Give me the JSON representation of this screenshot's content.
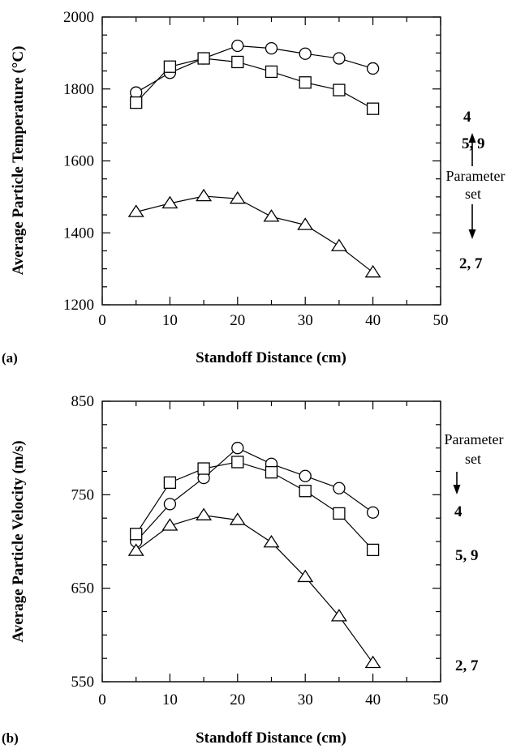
{
  "chart_data": [
    {
      "type": "line",
      "panel": "(a)",
      "xlabel": "Standoff Distance (cm)",
      "ylabel": "Average Particle Temperature (°C)",
      "xlim": [
        0,
        50
      ],
      "ylim": [
        1200,
        2000
      ],
      "xticks": [
        "0",
        "10",
        "20",
        "30",
        "40",
        "50"
      ],
      "yticks": [
        "1200",
        "1400",
        "1600",
        "1800",
        "2000"
      ],
      "x": [
        5,
        10,
        15,
        20,
        25,
        30,
        35,
        40
      ],
      "series": [
        {
          "name": "4",
          "marker": "circle",
          "values": [
            1790,
            1845,
            1885,
            1920,
            1913,
            1898,
            1885,
            1857
          ]
        },
        {
          "name": "5, 9",
          "marker": "square",
          "values": [
            1762,
            1862,
            1885,
            1875,
            1848,
            1818,
            1797,
            1745
          ]
        },
        {
          "name": "2, 7",
          "marker": "triangle",
          "values": [
            1458,
            1482,
            1502,
            1495,
            1445,
            1422,
            1363,
            1290
          ]
        }
      ],
      "annotation": {
        "line1": "Parameter",
        "line2": "set"
      },
      "grid": false,
      "legend": "none"
    },
    {
      "type": "line",
      "panel": "(b)",
      "xlabel": "Standoff Distance (cm)",
      "ylabel": "Average Particle Velocity (m/s)",
      "xlim": [
        0,
        50
      ],
      "ylim": [
        550,
        850
      ],
      "xticks": [
        "0",
        "10",
        "20",
        "30",
        "40",
        "50"
      ],
      "yticks": [
        "550",
        "650",
        "750",
        "850"
      ],
      "x": [
        5,
        10,
        15,
        20,
        25,
        30,
        35,
        40
      ],
      "series": [
        {
          "name": "4",
          "marker": "circle",
          "values": [
            700,
            740,
            768,
            800,
            783,
            770,
            757,
            731
          ]
        },
        {
          "name": "5, 9",
          "marker": "square",
          "values": [
            708,
            763,
            778,
            785,
            774,
            754,
            730,
            691
          ]
        },
        {
          "name": "2, 7",
          "marker": "triangle",
          "values": [
            690,
            717,
            728,
            723,
            699,
            662,
            620,
            570
          ]
        }
      ],
      "annotation": {
        "line1": "Parameter",
        "line2": "set"
      },
      "grid": false,
      "legend": "none"
    }
  ]
}
